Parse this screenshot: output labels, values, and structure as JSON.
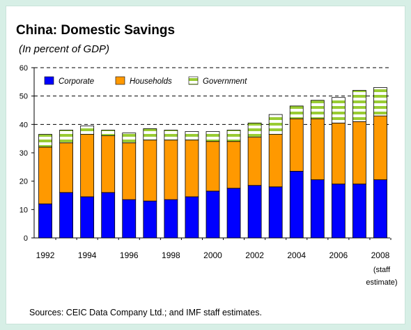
{
  "page": {
    "title": "China: Domestic Savings",
    "subtitle": "(In percent of GDP)",
    "source": "Sources: CEIC Data Company Ltd.; and IMF staff estimates."
  },
  "colors": {
    "corporate": "#0000ff",
    "households": "#ff9900",
    "government_stripe_1": "#99cc33",
    "government_stripe_2": "#ffffff",
    "background": "#d7efe6"
  },
  "chart_data": {
    "type": "bar",
    "stacked": true,
    "title": "China: Domestic Savings",
    "subtitle": "(In percent of GDP)",
    "categories": [
      "1992",
      "1993",
      "1994",
      "1995",
      "1996",
      "1997",
      "1998",
      "1999",
      "2000",
      "2001",
      "2002",
      "2003",
      "2004",
      "2005",
      "2006",
      "2007",
      "2008"
    ],
    "tick_labels": [
      "1992",
      "1994",
      "1996",
      "1998",
      "2000",
      "2002",
      "2004",
      "2006",
      "2008"
    ],
    "tick_note": [
      "(staff",
      "estimate)"
    ],
    "series": [
      {
        "name": "Corporate",
        "values": [
          12,
          16,
          14.5,
          16,
          13.5,
          13,
          13.5,
          14.5,
          16.5,
          17.5,
          18.5,
          18,
          23.5,
          20.5,
          19,
          19,
          20.5
        ]
      },
      {
        "name": "Households",
        "values": [
          20,
          17.5,
          22,
          20,
          20,
          21.5,
          21,
          20,
          17.5,
          16.5,
          17,
          18.5,
          18.5,
          21.5,
          21.5,
          22,
          22.5
        ]
      },
      {
        "name": "Government",
        "values": [
          4.5,
          4.5,
          3,
          2,
          3.5,
          4,
          3.5,
          3,
          3.5,
          4,
          5,
          7,
          4.5,
          6.5,
          9,
          11,
          10
        ]
      }
    ],
    "ylim": [
      0,
      60
    ],
    "yticks": [
      0,
      10,
      20,
      30,
      40,
      50,
      60
    ],
    "grid": "dashed horizontal at 40, 50, 60",
    "legend_position": "top-left"
  }
}
